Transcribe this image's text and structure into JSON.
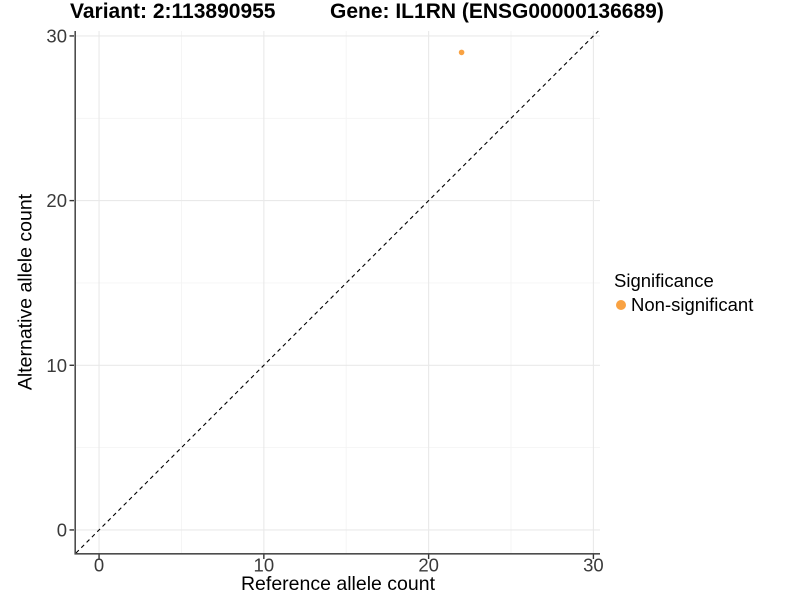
{
  "figure": {
    "title_left": "Variant: 2:113890955",
    "title_right": "Gene: IL1RN (ENSG00000136689)"
  },
  "chart_data": {
    "type": "scatter",
    "title": "Variant: 2:113890955   Gene: IL1RN (ENSG00000136689)",
    "xlabel": "Reference allele count",
    "ylabel": "Alternative allele count",
    "xlim": [
      -1.4,
      30.4
    ],
    "ylim": [
      -1.4,
      30.3
    ],
    "x_ticks": [
      0,
      10,
      20,
      30
    ],
    "y_ticks": [
      0,
      10,
      20,
      30
    ],
    "x_minor_ticks": [
      5,
      15,
      25
    ],
    "y_minor_ticks": [
      5,
      15,
      25
    ],
    "grid": "major and minor, light gray on white",
    "reference_line": {
      "type": "identity y=x",
      "style": "dashed",
      "color": "#000000"
    },
    "series": [
      {
        "name": "Non-significant",
        "color": "#F9A242",
        "points": [
          {
            "x": 22,
            "y": 29
          }
        ]
      }
    ],
    "legend": {
      "position": "right",
      "title": "Significance",
      "entries": [
        {
          "label": "Non-significant",
          "color": "#F9A242"
        }
      ]
    }
  },
  "colors": {
    "background": "#FFFFFF",
    "grid_major": "#E9E9E9",
    "grid_minor": "#F4F4F4",
    "axis_line": "#4D4D4D",
    "tick_mark": "#333333",
    "tick_label": "#3A3A3A",
    "point": "#F9A242"
  }
}
